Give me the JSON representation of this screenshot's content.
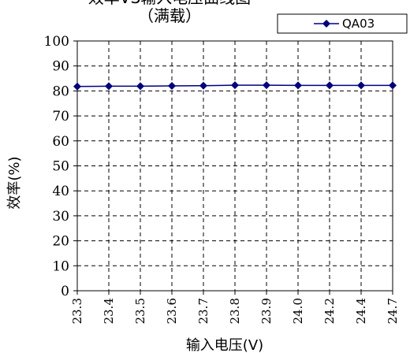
{
  "chart_data": {
    "type": "line",
    "title": "效率VS输入电压曲线图",
    "subtitle": "（满载）",
    "xlabel": "输入电压(V)",
    "ylabel": "效率(%)",
    "categories": [
      "23.3",
      "23.4",
      "23.5",
      "23.6",
      "23.7",
      "23.8",
      "23.9",
      "24.0",
      "24.2",
      "24.4",
      "24.7"
    ],
    "series": [
      {
        "name": "QA03",
        "values": [
          81.8,
          81.9,
          81.9,
          82.0,
          82.1,
          82.3,
          82.3,
          82.2,
          82.2,
          82.2,
          82.2
        ]
      }
    ],
    "ylim": [
      0,
      100
    ],
    "yticks": [
      0,
      10,
      20,
      30,
      40,
      50,
      60,
      70,
      80,
      90,
      100
    ],
    "grid": "dashed",
    "legend": "top-right",
    "line_color": "#000080",
    "marker_color": "#000080",
    "marker": "diamond"
  }
}
